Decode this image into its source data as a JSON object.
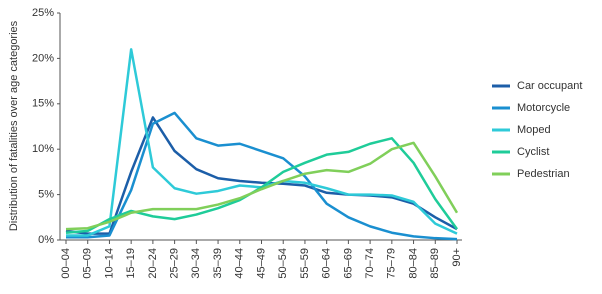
{
  "chart_data": {
    "type": "line",
    "y_label": "Distribution of fatalities over age categories",
    "categories": [
      "00–04",
      "05–09",
      "10–14",
      "15–19",
      "20–24",
      "25–29",
      "30–34",
      "35–39",
      "40–44",
      "45–49",
      "50–54",
      "55–59",
      "60–64",
      "65–69",
      "70–74",
      "75–79",
      "80–84",
      "85–89",
      "90+"
    ],
    "series": [
      {
        "name": "Car occupant",
        "color": "#1c5ea8",
        "values": [
          1.0,
          0.7,
          0.7,
          7.5,
          13.5,
          9.8,
          7.8,
          6.8,
          6.5,
          6.3,
          6.2,
          6.0,
          5.2,
          5.0,
          4.9,
          4.7,
          4.0,
          2.5,
          1.2
        ]
      },
      {
        "name": "Motorcycle",
        "color": "#1a8fd0",
        "values": [
          0.3,
          0.3,
          0.5,
          5.5,
          12.8,
          14.0,
          11.2,
          10.4,
          10.6,
          9.8,
          9.0,
          7.0,
          4.0,
          2.5,
          1.5,
          0.8,
          0.4,
          0.2,
          0.1
        ]
      },
      {
        "name": "Moped",
        "color": "#2ecad8",
        "values": [
          0.5,
          0.5,
          1.5,
          21.0,
          8.0,
          5.7,
          5.1,
          5.4,
          6.0,
          5.8,
          6.5,
          6.3,
          5.7,
          5.0,
          5.0,
          4.9,
          4.2,
          1.8,
          0.7
        ]
      },
      {
        "name": "Cyclist",
        "color": "#1fcc99",
        "values": [
          0.8,
          1.0,
          2.3,
          3.2,
          2.6,
          2.3,
          2.8,
          3.5,
          4.4,
          5.8,
          7.5,
          8.5,
          9.4,
          9.7,
          10.6,
          11.2,
          8.5,
          4.5,
          1.2
        ]
      },
      {
        "name": "Pedestrian",
        "color": "#80cf5a",
        "values": [
          1.2,
          1.3,
          2.0,
          3.0,
          3.4,
          3.4,
          3.4,
          3.9,
          4.6,
          5.6,
          6.5,
          7.3,
          7.7,
          7.5,
          8.4,
          10.0,
          10.7,
          7.0,
          3.0
        ]
      }
    ],
    "ylim": [
      0,
      25
    ],
    "yticks": [
      {
        "value": 0,
        "label": "0%"
      },
      {
        "value": 5,
        "label": "5%"
      },
      {
        "value": 10,
        "label": "10%"
      },
      {
        "value": 15,
        "label": "15%"
      },
      {
        "value": 20,
        "label": "20%"
      },
      {
        "value": 25,
        "label": "25%"
      }
    ],
    "grid": false,
    "legend": "right"
  }
}
